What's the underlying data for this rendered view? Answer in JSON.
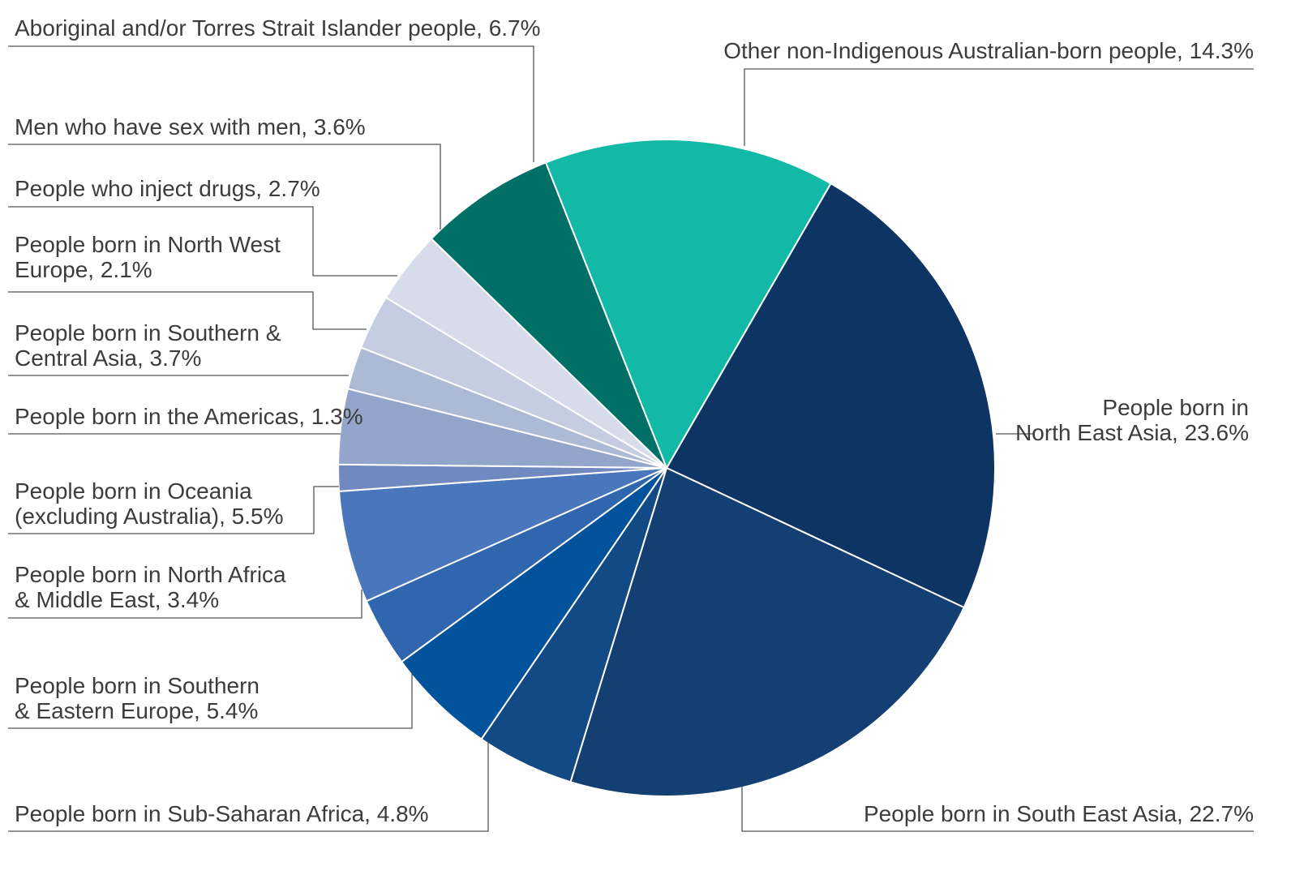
{
  "chart_data": {
    "type": "pie",
    "title": "",
    "slices": [
      {
        "lines": [
          "People born in",
          "North East Asia, 23.6%"
        ],
        "value": 23.6,
        "color": "#0e3463"
      },
      {
        "lines": [
          "People born in South East Asia, 22.7%"
        ],
        "value": 22.7,
        "color": "#133f72"
      },
      {
        "lines": [
          "People born in Sub-Saharan Africa, 4.8%"
        ],
        "value": 4.8,
        "color": "#124a85"
      },
      {
        "lines": [
          "People born in Southern",
          "& Eastern Europe, 5.4%"
        ],
        "value": 5.4,
        "color": "#02529c"
      },
      {
        "lines": [
          "People born in North Africa",
          "& Middle East, 3.4%"
        ],
        "value": 3.4,
        "color": "#2f66ae"
      },
      {
        "lines": [
          "People born in Oceania",
          "(excluding Australia), 5.5%"
        ],
        "value": 5.5,
        "color": "#4a77bc"
      },
      {
        "lines": [
          "People born in the Americas, 1.3%"
        ],
        "value": 1.3,
        "color": "#7089be"
      },
      {
        "lines": [
          "People born in Southern &",
          "Central Asia, 3.7%"
        ],
        "value": 3.7,
        "color": "#93a5ca"
      },
      {
        "lines": [
          "People born in North West",
          "Europe, 2.1%"
        ],
        "value": 2.1,
        "color": "#adbad6"
      },
      {
        "lines": [
          "People who inject drugs, 2.7%"
        ],
        "value": 2.7,
        "color": "#c4cde2"
      },
      {
        "lines": [
          "Men who have sex with men, 3.6%"
        ],
        "value": 3.6,
        "color": "#d6dcea"
      },
      {
        "lines": [
          "Aboriginal and/or Torres Strait Islander people, 6.7%"
        ],
        "value": 6.7,
        "color": "#006f65"
      },
      {
        "lines": [
          "Other non-Indigenous Australian-born people, 14.3%"
        ],
        "value": 14.3,
        "color": "#13b9a7"
      }
    ]
  }
}
